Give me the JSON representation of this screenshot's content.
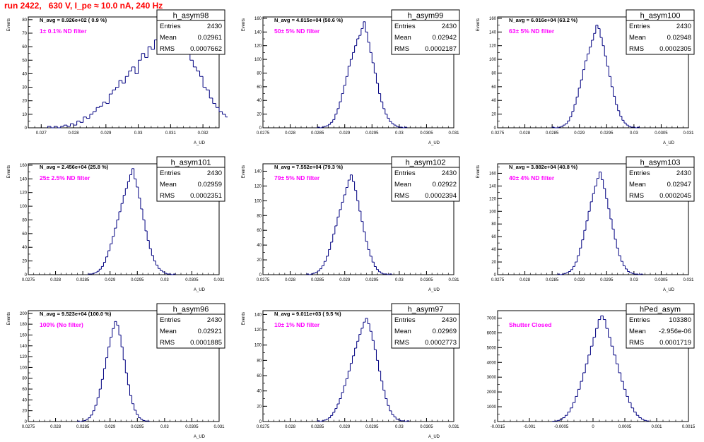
{
  "title": "run 2422,   630 V, I_pe ≈ 10.0 nA, 240 Hz",
  "chart_data": [
    {
      "type": "bar",
      "name": "h_asym98",
      "stats": {
        "entries": "2430",
        "mean": "0.02961",
        "rms": "0.0007662"
      },
      "stat_labels": {
        "entries": "Entries",
        "mean": "Mean",
        "rms": "RMS"
      },
      "navg": "N_avg = 8.926e+02 ( 0.9 %)",
      "filter": "1± 0.1% ND filter",
      "xlabel": "A_UD",
      "ylabel": "Events",
      "xlim": [
        0.0266,
        0.0325
      ],
      "ylim": [
        0,
        82
      ],
      "xticks": [
        0.027,
        0.028,
        0.029,
        0.03,
        0.031,
        0.032
      ],
      "xtick_labels": [
        "0.027",
        "0.028",
        "0.029",
        "0.03",
        "0.031",
        "0.032"
      ],
      "yticks": [
        0,
        10,
        20,
        30,
        40,
        50,
        60,
        70,
        80
      ],
      "ytick_labels": [
        "0",
        "10",
        "20",
        "30",
        "40",
        "50",
        "60",
        "70",
        "80"
      ],
      "bins": {
        "start": 0.0272,
        "width": 0.0001,
        "counts": [
          1,
          0,
          1,
          0,
          1,
          2,
          1,
          3,
          2,
          5,
          4,
          8,
          7,
          10,
          12,
          15,
          16,
          19,
          18,
          25,
          28,
          30,
          35,
          33,
          38,
          42,
          45,
          40,
          50,
          55,
          52,
          60,
          58,
          65,
          62,
          70,
          68,
          72,
          75,
          78,
          70,
          66,
          60,
          58,
          50,
          45,
          42,
          38,
          30,
          28,
          22,
          18,
          15,
          12,
          10,
          8,
          6,
          4,
          3,
          2,
          1,
          1,
          0,
          1
        ]
      }
    },
    {
      "type": "bar",
      "name": "h_asym99",
      "stats": {
        "entries": "2430",
        "mean": "0.02942",
        "rms": "0.0002187"
      },
      "stat_labels": {
        "entries": "Entries",
        "mean": "Mean",
        "rms": "RMS"
      },
      "navg": "N_avg = 4.815e+04 (50.6 %)",
      "filter": "50± 5% ND filter",
      "xlabel": "A_UD",
      "ylabel": "Events",
      "xlim": [
        0.0275,
        0.031
      ],
      "ylim": [
        0,
        162
      ],
      "xticks": [
        0.0275,
        0.028,
        0.0285,
        0.029,
        0.0295,
        0.03,
        0.0305,
        0.031
      ],
      "xtick_labels": [
        "0.0275",
        "0.028",
        "0.0285",
        "0.029",
        "0.0295",
        "0.03",
        "0.0305",
        "0.031"
      ],
      "yticks": [
        0,
        20,
        40,
        60,
        80,
        100,
        120,
        140,
        160
      ],
      "ytick_labels": [
        "0",
        "20",
        "40",
        "60",
        "80",
        "100",
        "120",
        "140",
        "160"
      ],
      "bins": {
        "start": 0.0285,
        "width": 4e-05,
        "counts": [
          1,
          0,
          1,
          2,
          3,
          5,
          8,
          12,
          20,
          28,
          38,
          50,
          62,
          75,
          90,
          100,
          110,
          120,
          130,
          135,
          145,
          155,
          140,
          125,
          110,
          95,
          80,
          65,
          50,
          38,
          28,
          20,
          14,
          9,
          6,
          4,
          2,
          1,
          1,
          0,
          1
        ]
      }
    },
    {
      "type": "bar",
      "name": "h_asym100",
      "stats": {
        "entries": "2430",
        "mean": "0.02948",
        "rms": "0.0002305"
      },
      "stat_labels": {
        "entries": "Entries",
        "mean": "Mean",
        "rms": "RMS"
      },
      "navg": "N_avg = 6.016e+04 (63.2 %)",
      "filter": "63± 5% ND filter",
      "xlabel": "A_UD",
      "ylabel": "Events",
      "xlim": [
        0.0275,
        0.031
      ],
      "ylim": [
        0,
        162
      ],
      "xticks": [
        0.0275,
        0.028,
        0.0285,
        0.029,
        0.0295,
        0.03,
        0.0305,
        0.031
      ],
      "xtick_labels": [
        "0.0275",
        "0.028",
        "0.0285",
        "0.029",
        "0.0295",
        "0.03",
        "0.0305",
        "0.031"
      ],
      "yticks": [
        0,
        20,
        40,
        60,
        80,
        100,
        120,
        140,
        160
      ],
      "ytick_labels": [
        "0",
        "20",
        "40",
        "60",
        "80",
        "100",
        "120",
        "140",
        "160"
      ],
      "bins": {
        "start": 0.0285,
        "width": 4e-05,
        "counts": [
          1,
          0,
          0,
          1,
          2,
          4,
          6,
          10,
          16,
          24,
          34,
          45,
          58,
          70,
          85,
          98,
          108,
          118,
          128,
          138,
          150,
          145,
          132,
          120,
          105,
          90,
          75,
          60,
          46,
          34,
          25,
          17,
          11,
          7,
          4,
          2,
          1,
          1,
          0,
          1
        ]
      }
    },
    {
      "type": "bar",
      "name": "h_asym101",
      "stats": {
        "entries": "2430",
        "mean": "0.02959",
        "rms": "0.0002351"
      },
      "stat_labels": {
        "entries": "Entries",
        "mean": "Mean",
        "rms": "RMS"
      },
      "navg": "N_avg = 2.456e+04 (25.8 %)",
      "filter": "25± 2.5% ND filter",
      "xlabel": "A_UD",
      "ylabel": "Events",
      "xlim": [
        0.0275,
        0.031
      ],
      "ylim": [
        0,
        162
      ],
      "xticks": [
        0.0275,
        0.028,
        0.0285,
        0.029,
        0.0295,
        0.03,
        0.0305,
        0.031
      ],
      "xtick_labels": [
        "0.0275",
        "0.028",
        "0.0285",
        "0.029",
        "0.0295",
        "0.03",
        "0.0305",
        "0.031"
      ],
      "yticks": [
        0,
        20,
        40,
        60,
        80,
        100,
        120,
        140,
        160
      ],
      "ytick_labels": [
        "0",
        "20",
        "40",
        "60",
        "80",
        "100",
        "120",
        "140",
        "160"
      ],
      "bins": {
        "start": 0.0286,
        "width": 4e-05,
        "counts": [
          1,
          1,
          2,
          3,
          5,
          8,
          12,
          18,
          26,
          35,
          45,
          56,
          68,
          80,
          92,
          104,
          116,
          126,
          136,
          146,
          155,
          140,
          128,
          112,
          96,
          80,
          64,
          50,
          38,
          28,
          20,
          14,
          9,
          6,
          4,
          2,
          1,
          1,
          0,
          1
        ]
      }
    },
    {
      "type": "bar",
      "name": "h_asym102",
      "stats": {
        "entries": "2430",
        "mean": "0.02922",
        "rms": "0.0002394"
      },
      "stat_labels": {
        "entries": "Entries",
        "mean": "Mean",
        "rms": "RMS"
      },
      "navg": "N_avg = 7.552e+04 (79.3 %)",
      "filter": "79± 5% ND filter",
      "xlabel": "A_UD",
      "ylabel": "Events",
      "xlim": [
        0.0275,
        0.031
      ],
      "ylim": [
        0,
        150
      ],
      "xticks": [
        0.0275,
        0.028,
        0.0285,
        0.029,
        0.0295,
        0.03,
        0.0305,
        0.031
      ],
      "xtick_labels": [
        "0.0275",
        "0.028",
        "0.0285",
        "0.029",
        "0.0295",
        "0.03",
        "0.0305",
        "0.031"
      ],
      "yticks": [
        0,
        20,
        40,
        60,
        80,
        100,
        120,
        140
      ],
      "ytick_labels": [
        "0",
        "20",
        "40",
        "60",
        "80",
        "100",
        "120",
        "140"
      ],
      "bins": {
        "start": 0.0283,
        "width": 4e-05,
        "counts": [
          1,
          0,
          1,
          2,
          3,
          5,
          8,
          12,
          18,
          25,
          34,
          44,
          55,
          66,
          78,
          88,
          98,
          108,
          118,
          128,
          135,
          126,
          114,
          100,
          86,
          72,
          58,
          45,
          34,
          25,
          17,
          11,
          7,
          4,
          2,
          1,
          1,
          0,
          1
        ]
      }
    },
    {
      "type": "bar",
      "name": "h_asym103",
      "stats": {
        "entries": "2430",
        "mean": "0.02947",
        "rms": "0.0002045"
      },
      "stat_labels": {
        "entries": "Entries",
        "mean": "Mean",
        "rms": "RMS"
      },
      "navg": "N_avg = 3.882e+04 (40.8 %)",
      "filter": "40± 4% ND filter",
      "xlabel": "A_UD",
      "ylabel": "Events",
      "xlim": [
        0.0275,
        0.031
      ],
      "ylim": [
        0,
        175
      ],
      "xticks": [
        0.0275,
        0.028,
        0.0285,
        0.029,
        0.0295,
        0.03,
        0.0305,
        0.031
      ],
      "xtick_labels": [
        "0.0275",
        "0.028",
        "0.0285",
        "0.029",
        "0.0295",
        "0.03",
        "0.0305",
        "0.031"
      ],
      "yticks": [
        0,
        20,
        40,
        60,
        80,
        100,
        120,
        140,
        160
      ],
      "ytick_labels": [
        "0",
        "20",
        "40",
        "60",
        "80",
        "100",
        "120",
        "140",
        "160"
      ],
      "bins": {
        "start": 0.0286,
        "width": 4e-05,
        "counts": [
          1,
          0,
          1,
          2,
          3,
          5,
          8,
          13,
          20,
          30,
          42,
          55,
          70,
          85,
          100,
          115,
          128,
          140,
          152,
          162,
          150,
          136,
          120,
          104,
          88,
          72,
          56,
          42,
          30,
          21,
          14,
          9,
          5,
          3,
          2,
          1,
          1,
          0,
          1
        ]
      }
    },
    {
      "type": "bar",
      "name": "h_asym96",
      "stats": {
        "entries": "2430",
        "mean": "0.02921",
        "rms": "0.0001885"
      },
      "stat_labels": {
        "entries": "Entries",
        "mean": "Mean",
        "rms": "RMS"
      },
      "navg": "N_avg = 9.523e+04 (100.0 %)",
      "filter": "100% (No filter)",
      "xlabel": "A_UD",
      "ylabel": "Events",
      "xlim": [
        0.0275,
        0.031
      ],
      "ylim": [
        0,
        205
      ],
      "xticks": [
        0.0275,
        0.028,
        0.0285,
        0.029,
        0.0295,
        0.03,
        0.0305,
        0.031
      ],
      "xtick_labels": [
        "0.0275",
        "0.028",
        "0.0285",
        "0.029",
        "0.0295",
        "0.03",
        "0.0305",
        "0.031"
      ],
      "yticks": [
        0,
        20,
        40,
        60,
        80,
        100,
        120,
        140,
        160,
        180,
        200
      ],
      "ytick_labels": [
        "0",
        "20",
        "40",
        "60",
        "80",
        "100",
        "120",
        "140",
        "160",
        "180",
        "200"
      ],
      "bins": {
        "start": 0.0284,
        "width": 4e-05,
        "counts": [
          1,
          0,
          1,
          2,
          4,
          7,
          12,
          20,
          30,
          44,
          60,
          78,
          98,
          118,
          138,
          156,
          172,
          185,
          178,
          160,
          138,
          114,
          90,
          68,
          48,
          33,
          21,
          13,
          7,
          4,
          2,
          1,
          1
        ]
      }
    },
    {
      "type": "bar",
      "name": "h_asym97",
      "stats": {
        "entries": "2430",
        "mean": "0.02969",
        "rms": "0.0002773"
      },
      "stat_labels": {
        "entries": "Entries",
        "mean": "Mean",
        "rms": "RMS"
      },
      "navg": "N_avg = 9.011e+03 ( 9.5 %)",
      "filter": "10± 1% ND filter",
      "xlabel": "A_UD",
      "ylabel": "Events",
      "xlim": [
        0.0275,
        0.031
      ],
      "ylim": [
        0,
        145
      ],
      "xticks": [
        0.0275,
        0.028,
        0.0285,
        0.029,
        0.0295,
        0.03,
        0.0305,
        0.031
      ],
      "xtick_labels": [
        "0.0275",
        "0.028",
        "0.0285",
        "0.029",
        "0.0295",
        "0.03",
        "0.0305",
        "0.031"
      ],
      "yticks": [
        0,
        20,
        40,
        60,
        80,
        100,
        120,
        140
      ],
      "ytick_labels": [
        "0",
        "20",
        "40",
        "60",
        "80",
        "100",
        "120",
        "140"
      ],
      "bins": {
        "start": 0.0285,
        "width": 4e-05,
        "counts": [
          1,
          0,
          1,
          2,
          3,
          5,
          8,
          12,
          17,
          23,
          30,
          38,
          47,
          56,
          66,
          76,
          86,
          96,
          105,
          114,
          122,
          130,
          135,
          128,
          118,
          106,
          94,
          80,
          66,
          53,
          41,
          30,
          21,
          14,
          9,
          6,
          3,
          2,
          1,
          1,
          0,
          1
        ]
      }
    },
    {
      "type": "bar",
      "name": "hPed_asym",
      "stats": {
        "entries": "103380",
        "mean": "-2.956e-06",
        "rms": "0.0001719"
      },
      "stat_labels": {
        "entries": "Entries",
        "mean": "Mean",
        "rms": "RMS"
      },
      "filter": "Shutter Closed",
      "xlabel": "",
      "ylabel": "",
      "xlim": [
        -0.0015,
        0.0015
      ],
      "ylim": [
        0,
        7500
      ],
      "xticks": [
        -0.0015,
        -0.001,
        -0.0005,
        0,
        0.0005,
        0.001,
        0.0015
      ],
      "xtick_labels": [
        "-0.0015",
        "-0.001",
        "-0.0005",
        "0",
        "0.0005",
        "0.001",
        "0.0015"
      ],
      "yticks": [
        0,
        1000,
        2000,
        3000,
        4000,
        5000,
        6000,
        7000
      ],
      "ytick_labels": [
        "0",
        "1000",
        "2000",
        "3000",
        "4000",
        "5000",
        "6000",
        "7000"
      ],
      "bins": {
        "start": -0.00064,
        "width": 4e-05,
        "counts": [
          20,
          40,
          80,
          150,
          260,
          420,
          640,
          920,
          1280,
          1700,
          2180,
          2720,
          3300,
          3900,
          4500,
          5100,
          5700,
          6300,
          6900,
          7150,
          6900,
          6300,
          5700,
          5100,
          4500,
          3900,
          3300,
          2720,
          2180,
          1700,
          1280,
          920,
          640,
          420,
          260,
          150,
          80,
          40
        ]
      }
    }
  ]
}
